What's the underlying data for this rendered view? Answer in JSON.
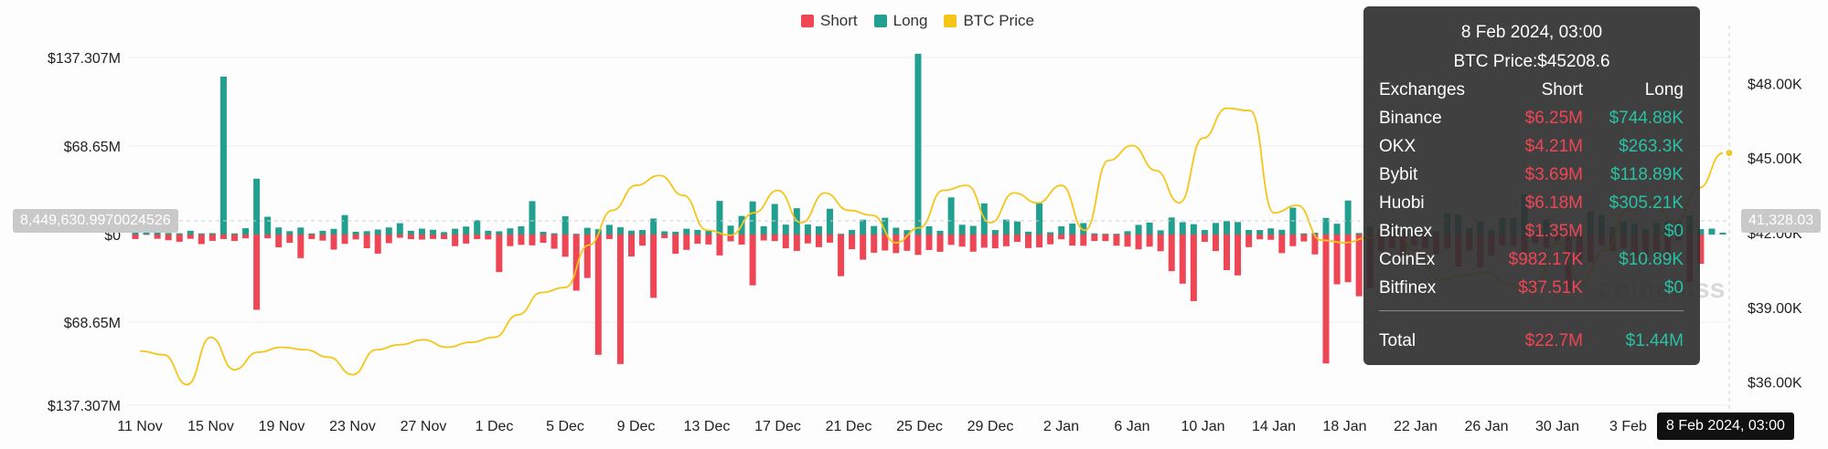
{
  "legend": {
    "short": "Short",
    "long": "Long",
    "price": "BTC Price"
  },
  "colors": {
    "short": "#ef4656",
    "long": "#22a08f",
    "price": "#f5c518"
  },
  "y_left_labels": [
    "$137.307M",
    "$68.65M",
    "$0",
    "$68.65M",
    "$137.307M"
  ],
  "y_right_labels": [
    "$48.00K",
    "$45.00K",
    "$42.00K",
    "$39.00K",
    "$36.00K"
  ],
  "x_labels": [
    "11 Nov",
    "15 Nov",
    "19 Nov",
    "23 Nov",
    "27 Nov",
    "1 Dec",
    "5 Dec",
    "9 Dec",
    "13 Dec",
    "17 Dec",
    "21 Dec",
    "25 Dec",
    "29 Dec",
    "2 Jan",
    "6 Jan",
    "10 Jan",
    "14 Jan",
    "18 Jan",
    "22 Jan",
    "26 Jan",
    "30 Jan",
    "3 Feb"
  ],
  "crosshair": {
    "left_value": "8,449,630.9970024526",
    "right_value": "41,328.03",
    "date": "8 Feb 2024, 03:00"
  },
  "tooltip": {
    "title": "8 Feb 2024, 03:00",
    "price": "BTC Price:$45208.6",
    "headers": [
      "Exchanges",
      "Short",
      "Long"
    ],
    "rows": [
      [
        "Binance",
        "$6.25M",
        "$744.88K"
      ],
      [
        "OKX",
        "$4.21M",
        "$263.3K"
      ],
      [
        "Bybit",
        "$3.69M",
        "$118.89K"
      ],
      [
        "Huobi",
        "$6.18M",
        "$305.21K"
      ],
      [
        "Bitmex",
        "$1.35M",
        "$0"
      ],
      [
        "CoinEx",
        "$982.17K",
        "$10.89K"
      ],
      [
        "Bitfinex",
        "$37.51K",
        "$0"
      ]
    ],
    "total": [
      "Total",
      "$22.7M",
      "$1.44M"
    ]
  },
  "watermark": "coinglass",
  "chart_data": {
    "type": "bar",
    "title": "",
    "x_start": "11 Nov",
    "x_end": "8 Feb",
    "ylim_left": [
      -137.307,
      137.307
    ],
    "ylim_right": [
      35000,
      49000
    ],
    "y_unit_left": "$M",
    "y_unit_right": "$",
    "series": [
      {
        "name": "Long",
        "values": [
          5.6,
          3.9,
          2.4,
          1.2,
          1.0,
          2.9,
          0.9,
          1.1,
          122.5,
          0.9,
          4.9,
          43.3,
          13.8,
          5.5,
          2.6,
          5.4,
          0.9,
          2.9,
          4.4,
          15.1,
          2.2,
          2.6,
          3.9,
          5.5,
          8.8,
          2.9,
          4.6,
          3.7,
          1.9,
          4.5,
          6.2,
          11.1,
          2.9,
          2.5,
          4.8,
          6.4,
          25.9,
          2.1,
          1.0,
          14.2,
          0.6,
          5.2,
          4.1,
          7.5,
          5.6,
          3.0,
          3.5,
          12.4,
          2.5,
          2.2,
          4.5,
          3.6,
          3.0,
          26.1,
          6.9,
          14.4,
          25.7,
          6.4,
          23.7,
          7.7,
          20.4,
          7.8,
          6.4,
          20.0,
          0.6,
          3.6,
          11.5,
          6.6,
          13.0,
          5.3,
          3.4,
          140.2,
          6.4,
          2.9,
          28.8,
          7.6,
          6.7,
          24.2,
          3.5,
          11.6,
          10.1,
          2.2,
          24.2,
          1.8,
          6.4,
          8.5,
          8.9,
          0.9,
          0.6,
          0.6,
          2.6,
          7.5,
          9.3,
          3.3,
          13.2,
          9.6,
          8.0,
          3.5,
          9.0,
          10.4,
          9.7,
          3.6,
          3.5,
          4.8,
          3.7,
          20.8,
          0.9,
          1.4,
          12.9,
          8.4,
          26.4,
          1.2,
          6.5,
          4.2,
          8.5,
          5.5,
          4.9,
          2.7,
          2.6,
          16.8,
          15.4,
          5.3,
          10.3,
          3.6,
          13.0,
          12.6,
          31.4,
          2.2,
          11.8,
          4.0,
          4.9,
          1.0,
          18.0,
          15.0,
          6.0,
          10.4,
          8.5,
          4.5,
          9.0,
          10.3,
          9.5,
          14.8,
          4.2,
          4.6,
          1.5
        ]
      },
      {
        "name": "Short",
        "values": [
          3.5,
          0.3,
          3.3,
          4.4,
          5.6,
          3.3,
          7.4,
          4.9,
          3.5,
          5.0,
          2.9,
          58.4,
          2.9,
          9.9,
          6.4,
          18.3,
          3.5,
          4.7,
          11.7,
          7.2,
          3.8,
          10.6,
          14.8,
          6.7,
          2.5,
          3.6,
          3.9,
          3.4,
          3.5,
          9.0,
          7.0,
          3.5,
          3.8,
          29.1,
          9.0,
          8.0,
          8.4,
          6.4,
          11.0,
          17.2,
          43.5,
          33.7,
          93.3,
          3.5,
          100.4,
          17.0,
          8.6,
          49.1,
          2.8,
          14.9,
          11.9,
          7.1,
          7.7,
          16.2,
          5.3,
          7.8,
          39.4,
          4.6,
          5.1,
          10.7,
          12.7,
          6.9,
          9.8,
          6.3,
          32.3,
          11.4,
          19.5,
          14.1,
          12.4,
          14.4,
          12.6,
          15.8,
          12.0,
          13.4,
          8.0,
          9.4,
          13.3,
          10.2,
          10.7,
          9.1,
          5.7,
          10.5,
          10.0,
          7.6,
          3.7,
          8.6,
          8.7,
          5.0,
          5.1,
          8.6,
          9.4,
          11.5,
          9.4,
          12.9,
          28.4,
          38.1,
          51.6,
          5.7,
          12.8,
          27.6,
          31.7,
          9.8,
          3.7,
          4.1,
          14.4,
          9.0,
          5.4,
          15.4,
          100.0,
          38.6,
          37.0,
          47.9,
          41.7,
          12.7,
          10.5,
          16.8,
          8.6,
          10.4,
          15.5,
          11.0,
          24.8,
          12.8,
          25.5,
          16.6,
          8.6,
          9.0,
          14.0,
          6.9,
          10.2,
          4.9,
          45.2,
          19.4,
          21.4,
          8.2,
          12.9,
          10.7,
          17.9,
          18.1,
          16.3,
          17.6,
          4.7,
          37.1,
          22.7
        ]
      },
      {
        "name": "BTC Price",
        "values": [
          37250,
          37100,
          35900,
          37800,
          36500,
          37200,
          37400,
          37300,
          37000,
          36300,
          37300,
          37500,
          37700,
          37400,
          37600,
          37800,
          38700,
          39600,
          39800,
          41500,
          42900,
          43900,
          44300,
          43500,
          42100,
          41900,
          42800,
          43700,
          42400,
          43600,
          42900,
          42700,
          41600,
          42200,
          43700,
          43900,
          42400,
          43600,
          43200,
          43900,
          42100,
          44900,
          45500,
          44500,
          43200,
          45800,
          47000,
          46900,
          42800,
          43100,
          41700,
          41600,
          41800,
          42200,
          41300,
          40100,
          40300,
          40400,
          39900,
          39800,
          41600,
          40000,
          41300,
          42900,
          43200,
          42400,
          43800,
          45200
        ]
      }
    ],
    "price_end": 45208.6
  }
}
